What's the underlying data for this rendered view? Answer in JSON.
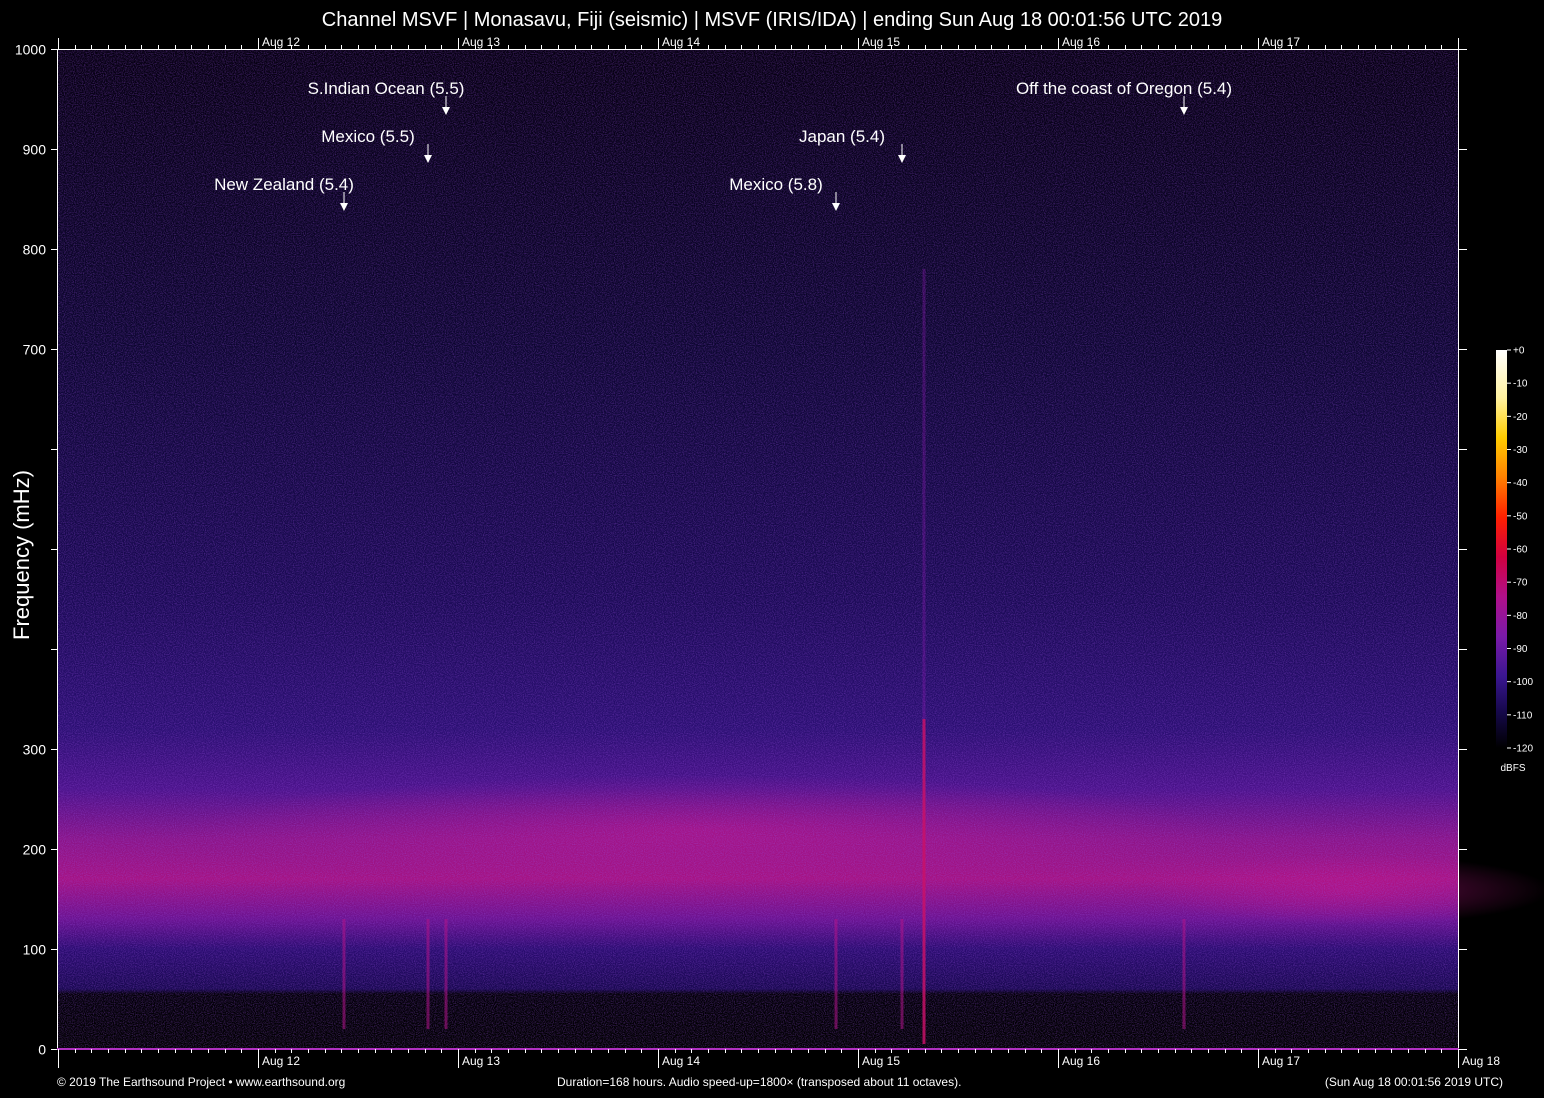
{
  "title": "Channel MSVF | Monasavu, Fiji (seismic) | MSVF (IRIS/IDA) | ending Sun Aug 18 00:01:56 UTC 2019",
  "footer": {
    "left": "© 2019 The Earthsound Project • www.earthsound.org",
    "center": "Duration=168 hours. Audio speed-up=1800× (transposed about 11 octaves).",
    "right": "(Sun Aug 18 00:01:56 2019 UTC)"
  },
  "colors": {
    "background": "#000000",
    "band_magenta": "#b0106e",
    "noise_purple": "#3a1480",
    "axis": "#ffffff"
  },
  "chart_data": {
    "type": "heatmap",
    "title": "Channel MSVF | Monasavu, Fiji (seismic) | MSVF (IRIS/IDA) | ending Sun Aug 18 00:01:56 UTC 2019",
    "xlabel": "",
    "ylabel": "Frequency (mHz)",
    "ylim": [
      0,
      1000
    ],
    "yticks": [
      0,
      100,
      200,
      300,
      400,
      500,
      600,
      700,
      800,
      900,
      1000
    ],
    "ytick_labels": [
      "0",
      "100",
      "200",
      "300",
      "",
      "",
      "",
      "700",
      "800",
      "900",
      "1000"
    ],
    "x_range_days": [
      0,
      7
    ],
    "x_day_ticks": [
      {
        "day": 1,
        "label": "Aug 12"
      },
      {
        "day": 2,
        "label": "Aug 13"
      },
      {
        "day": 3,
        "label": "Aug 14"
      },
      {
        "day": 4,
        "label": "Aug 15"
      },
      {
        "day": 5,
        "label": "Aug 16"
      },
      {
        "day": 6,
        "label": "Aug 17"
      },
      {
        "day": 7,
        "label": "Aug 18"
      }
    ],
    "colorbar": {
      "unit": "dBFS",
      "range": [
        -120,
        0
      ],
      "ticks": [
        "+0",
        "-10",
        "-20",
        "-30",
        "-40",
        "-50",
        "-60",
        "-70",
        "-80",
        "-90",
        "-100",
        "-110",
        "-120"
      ]
    },
    "annotations": [
      {
        "label": "S.Indian Ocean (5.5)",
        "day": 1.94,
        "row": 1
      },
      {
        "label": "Mexico (5.5)",
        "day": 1.85,
        "row": 2
      },
      {
        "label": "New Zealand (5.4)",
        "day": 1.43,
        "row": 3
      },
      {
        "label": "Off the coast of Oregon (5.4)",
        "day": 5.63,
        "row": 1
      },
      {
        "label": "Japan (5.4)",
        "day": 4.22,
        "row": 2
      },
      {
        "label": "Mexico (5.8)",
        "day": 3.89,
        "row": 3
      }
    ],
    "grid": false,
    "legend": "colorbar-right"
  }
}
